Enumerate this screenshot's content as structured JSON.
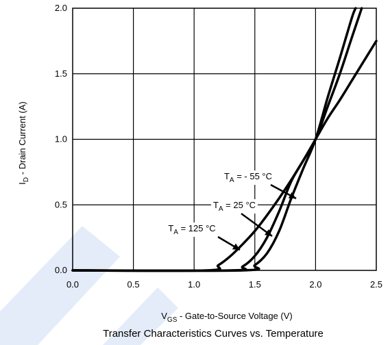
{
  "colors": {
    "watermark": "#e3ecf8",
    "line": "#000000",
    "grid": "#000000",
    "background": "#ffffff"
  },
  "chart_data": {
    "type": "line",
    "title": "Transfer Characteristics Curves vs. Temperature",
    "xlabel": {
      "main": "V",
      "sub": "GS",
      "rest": " - Gate-to-Source Voltage (V)"
    },
    "ylabel": {
      "main": "I",
      "sub": "D",
      "rest": " - Drain Current (A)"
    },
    "xlim": [
      0.0,
      2.5
    ],
    "ylim": [
      0.0,
      2.0
    ],
    "xticks": [
      "0.0",
      "0.5",
      "1.0",
      "1.5",
      "2.0",
      "2.5"
    ],
    "yticks": [
      "0.0",
      "0.5",
      "1.0",
      "1.5",
      "2.0"
    ],
    "grid": true,
    "series": [
      {
        "name": "TA = 125 °C",
        "label": {
          "main": "T",
          "sub": "A",
          "rest": " = 125 °C"
        },
        "x": [
          0.0,
          1.1,
          1.2,
          1.3,
          1.4,
          1.5,
          1.6,
          1.7,
          1.8,
          1.9,
          2.0,
          2.1,
          2.2,
          2.3,
          2.4,
          2.5
        ],
        "y": [
          0.0,
          0.0,
          0.04,
          0.11,
          0.2,
          0.3,
          0.42,
          0.55,
          0.69,
          0.84,
          1.0,
          1.16,
          1.3,
          1.45,
          1.6,
          1.75
        ]
      },
      {
        "name": "TA = 25 °C",
        "label": {
          "main": "T",
          "sub": "A",
          "rest": " = 25 °C"
        },
        "x": [
          0.0,
          1.3,
          1.4,
          1.5,
          1.6,
          1.7,
          1.8,
          1.9,
          2.0,
          2.1,
          2.2,
          2.3,
          2.38
        ],
        "y": [
          0.0,
          0.0,
          0.03,
          0.11,
          0.25,
          0.45,
          0.68,
          0.84,
          1.0,
          1.25,
          1.5,
          1.78,
          2.0
        ]
      },
      {
        "name": "TA = - 55 °C",
        "label": {
          "main": "T",
          "sub": "A",
          "rest": " = - 55 °C"
        },
        "x": [
          0.0,
          1.4,
          1.5,
          1.6,
          1.7,
          1.8,
          1.9,
          2.0,
          2.1,
          2.2,
          2.3,
          2.33
        ],
        "y": [
          0.0,
          0.0,
          0.04,
          0.13,
          0.3,
          0.55,
          0.78,
          1.0,
          1.32,
          1.62,
          1.93,
          2.0
        ]
      }
    ]
  }
}
